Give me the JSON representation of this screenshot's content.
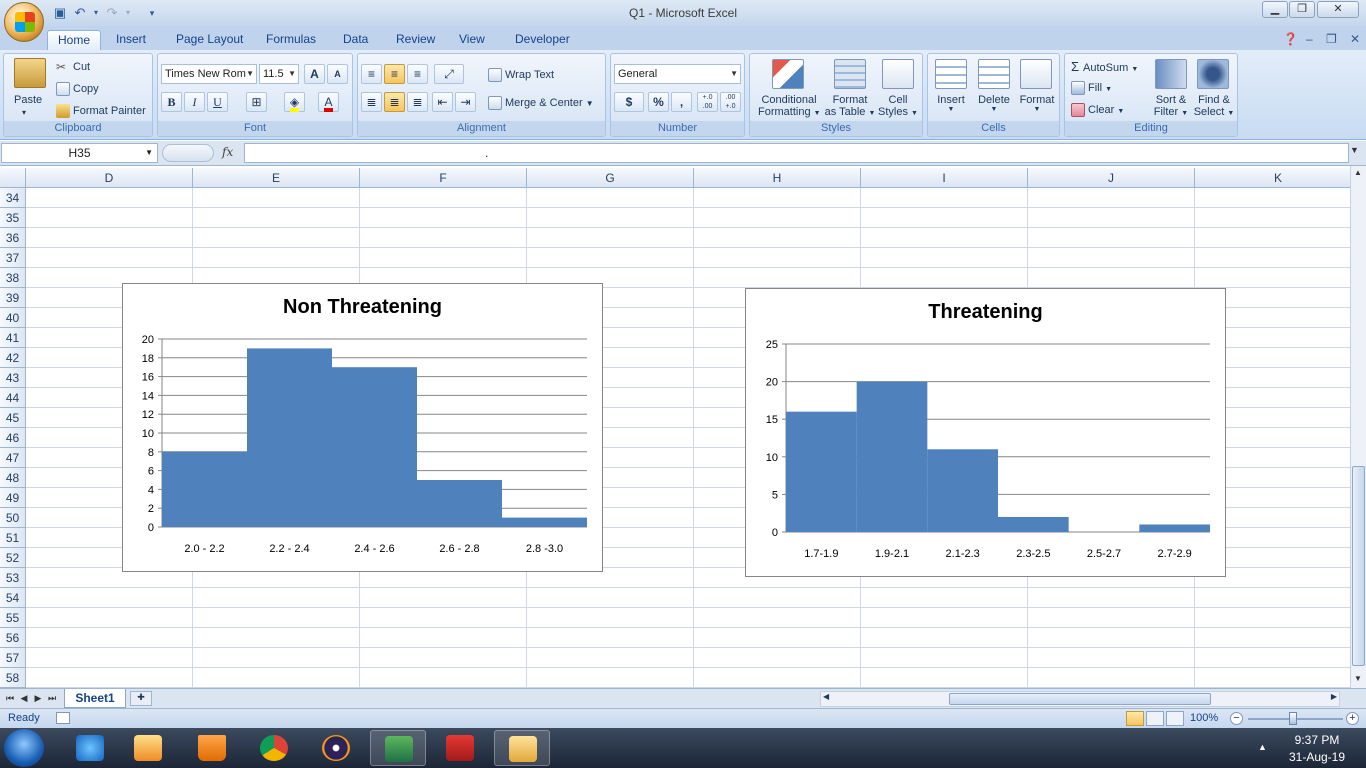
{
  "window": {
    "title": "Q1 - Microsoft Excel",
    "qat_icons": [
      "save-icon",
      "undo-icon",
      "redo-icon",
      "customize-icon"
    ]
  },
  "tabs": [
    "Home",
    "Insert",
    "Page Layout",
    "Formulas",
    "Data",
    "Review",
    "View",
    "Developer"
  ],
  "active_tab": "Home",
  "ribbon": {
    "clipboard": {
      "label": "Clipboard",
      "paste": "Paste",
      "cut": "Cut",
      "copy": "Copy",
      "format_painter": "Format Painter"
    },
    "font": {
      "label": "Font",
      "name": "Times New Rom",
      "size": "11.5",
      "bold": "B",
      "italic": "I",
      "underline": "U",
      "grow": "A",
      "shrink": "A",
      "font_color_glyph": "A"
    },
    "alignment": {
      "label": "Alignment",
      "wrap_text": "Wrap Text",
      "merge_center": "Merge & Center"
    },
    "number": {
      "label": "Number",
      "format": "General",
      "currency": "$",
      "percent": "%",
      "comma": ",",
      "inc_decimal": "+.0 .00",
      "dec_decimal": ".00 +.0"
    },
    "styles": {
      "label": "Styles",
      "conditional_1": "Conditional",
      "conditional_2": "Formatting",
      "format_table_1": "Format",
      "format_table_2": "as Table",
      "cell_styles_1": "Cell",
      "cell_styles_2": "Styles"
    },
    "cells": {
      "label": "Cells",
      "insert": "Insert",
      "delete": "Delete",
      "format": "Format"
    },
    "editing": {
      "label": "Editing",
      "autosum": "AutoSum",
      "fill": "Fill",
      "clear": "Clear",
      "sort_1": "Sort &",
      "sort_2": "Filter",
      "find_1": "Find &",
      "find_2": "Select"
    }
  },
  "formula_bar": {
    "name_box": "H35",
    "fx": "fx",
    "content": "."
  },
  "columns": [
    {
      "name": "D"
    },
    {
      "name": "E"
    },
    {
      "name": "F"
    },
    {
      "name": "G"
    },
    {
      "name": "H"
    },
    {
      "name": "I"
    },
    {
      "name": "J"
    },
    {
      "name": "K"
    }
  ],
  "rows": [
    "34",
    "35",
    "36",
    "37",
    "38",
    "39",
    "40",
    "41",
    "42",
    "43",
    "44",
    "45",
    "46",
    "47",
    "48",
    "49",
    "50",
    "51",
    "52",
    "53",
    "54",
    "55",
    "56",
    "57",
    "58"
  ],
  "chart_data": [
    {
      "type": "bar",
      "title": "Non Threatening",
      "categories": [
        "2.0 - 2.2",
        "2.2 - 2.4",
        "2.4 - 2.6",
        "2.6 - 2.8",
        "2.8 -3.0"
      ],
      "values": [
        8,
        19,
        17,
        5,
        1
      ],
      "ylim": [
        0,
        20
      ],
      "yticks": [
        0,
        2,
        4,
        6,
        8,
        10,
        12,
        14,
        16,
        18,
        20
      ],
      "color": "#4f81bd",
      "grid": true,
      "legend": "none"
    },
    {
      "type": "bar",
      "title": "Threatening",
      "categories": [
        "1.7-1.9",
        "1.9-2.1",
        "2.1-2.3",
        "2.3-2.5",
        "2.5-2.7",
        "2.7-2.9"
      ],
      "values": [
        16,
        20,
        11,
        2,
        0,
        1
      ],
      "ylim": [
        0,
        25
      ],
      "yticks": [
        0,
        5,
        10,
        15,
        20,
        25
      ],
      "color": "#4f81bd",
      "grid": true,
      "legend": "none"
    }
  ],
  "sheet_tabs": [
    "Sheet1"
  ],
  "status": {
    "text": "Ready",
    "zoom": "100%"
  },
  "taskbar": {
    "apps": [
      "internet-explorer-icon",
      "media-player-icon",
      "vlc-icon",
      "chrome-icon",
      "eclipse-icon",
      "excel-icon",
      "acrobat-icon",
      "file-explorer-icon"
    ],
    "time": "9:37 PM",
    "date": "31-Aug-19"
  }
}
